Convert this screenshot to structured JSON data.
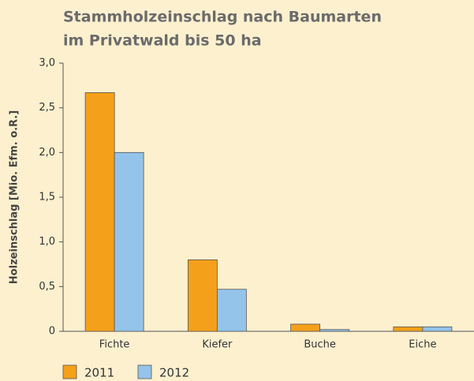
{
  "chart_data": {
    "type": "bar",
    "title": [
      "Stammholzeinschlag nach Baumarten",
      "im Privatwald bis 50 ha"
    ],
    "y_label": "Holzeinschlag  [Mio. Efm. o.R.]",
    "categories": [
      "Fichte",
      "Kiefer",
      "Buche",
      "Eiche"
    ],
    "series": [
      {
        "name": "2011",
        "color": "#f5a01a",
        "values": [
          2.67,
          0.8,
          0.08,
          0.05
        ]
      },
      {
        "name": "2012",
        "color": "#94c4ea",
        "values": [
          2.0,
          0.47,
          0.02,
          0.05
        ]
      }
    ],
    "ylim": [
      0,
      3
    ],
    "yticks": [
      0,
      {
        "value": 0.5,
        "label": "0,5"
      },
      {
        "value": 1,
        "label": "1,0"
      },
      {
        "value": 1.5,
        "label": "1,5"
      },
      {
        "value": 2,
        "label": "2,0"
      },
      {
        "value": 2.5,
        "label": "2,5"
      },
      {
        "value": 3,
        "label": "3,0"
      }
    ],
    "grid": false,
    "legend": "bottom"
  }
}
